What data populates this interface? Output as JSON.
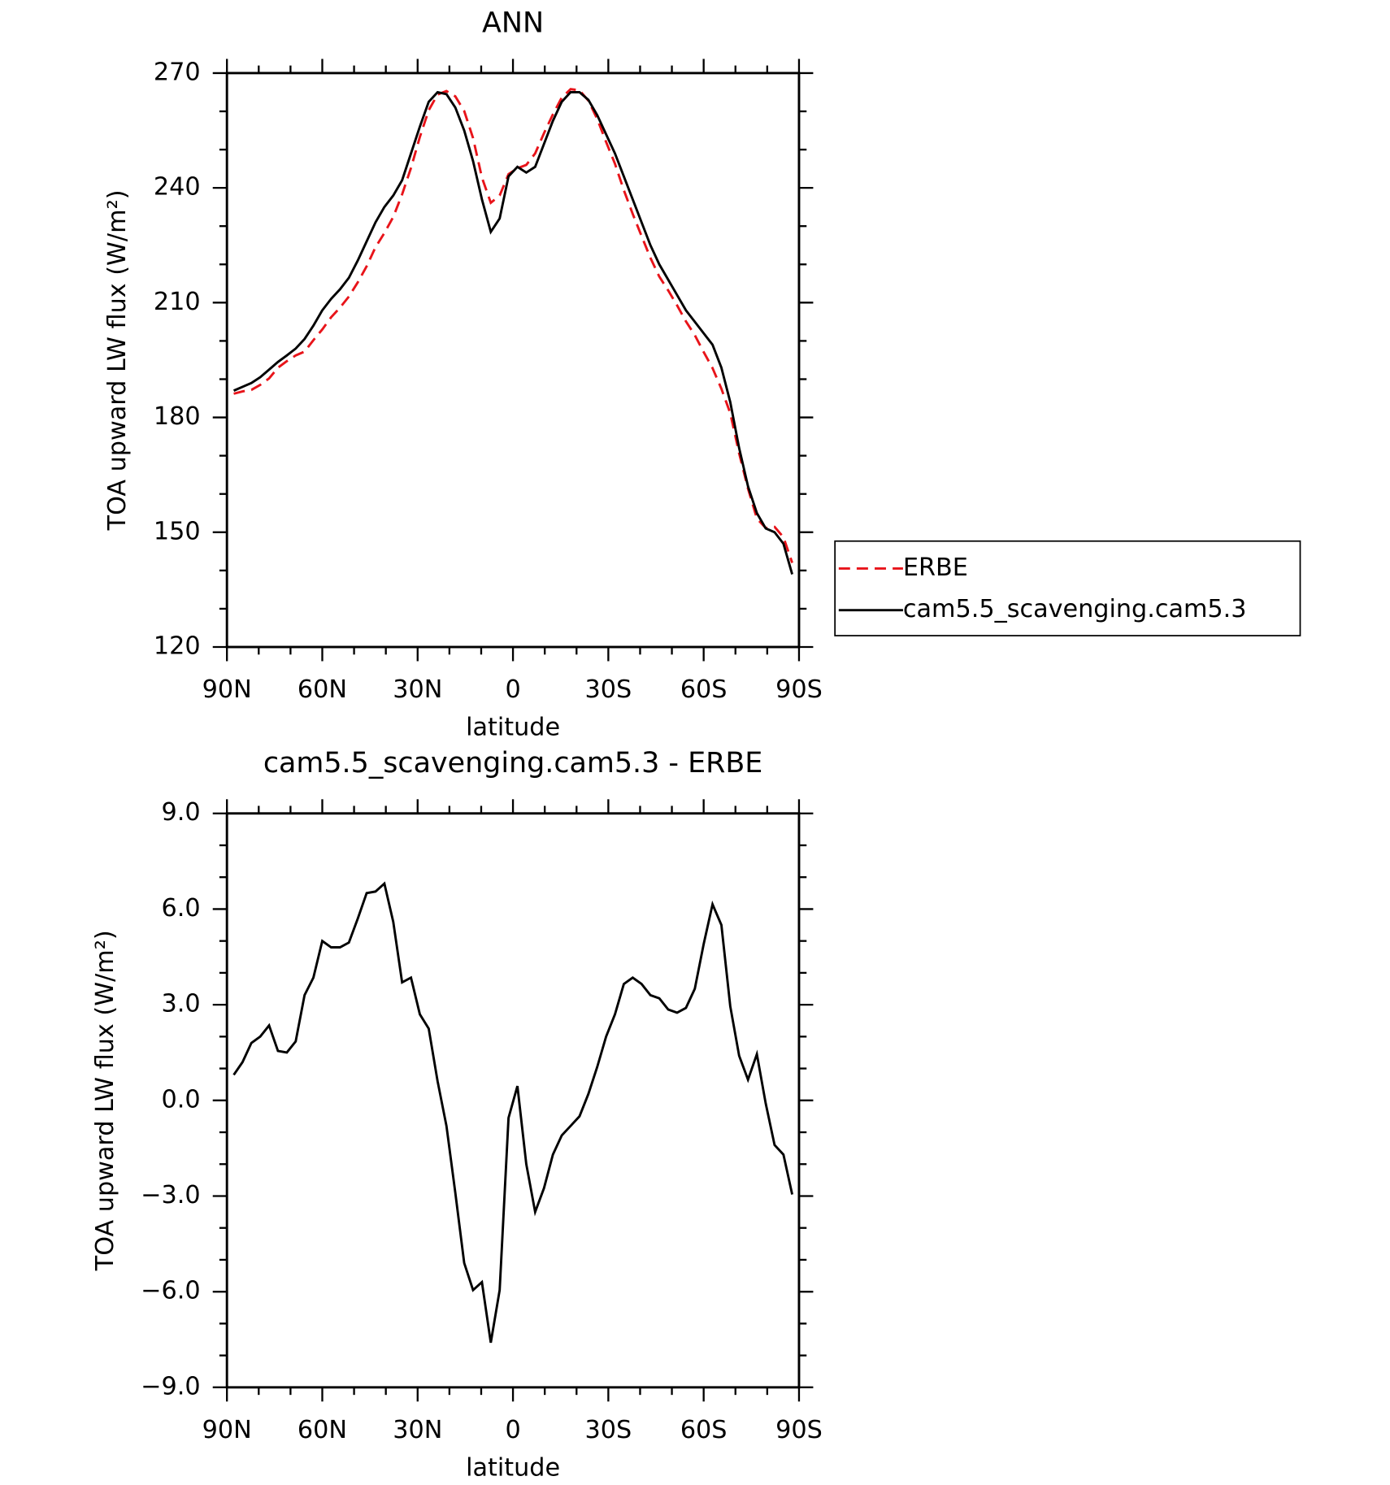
{
  "chart_data": [
    {
      "type": "line",
      "title": "ANN",
      "xlabel": "latitude",
      "ylabel": "TOA upward LW flux (W/m²)",
      "x": [
        87.86,
        85.1,
        82.31,
        79.53,
        76.74,
        73.95,
        71.16,
        68.37,
        65.58,
        62.79,
        60.0,
        57.21,
        54.42,
        51.63,
        48.84,
        46.04,
        43.25,
        40.46,
        37.67,
        34.88,
        32.09,
        29.3,
        26.51,
        23.72,
        20.93,
        18.14,
        15.35,
        12.56,
        9.77,
        6.98,
        4.19,
        1.4,
        -1.4,
        -4.19,
        -6.98,
        -9.77,
        -12.56,
        -15.35,
        -18.14,
        -20.93,
        -23.72,
        -26.51,
        -29.3,
        -32.09,
        -34.88,
        -37.67,
        -40.46,
        -43.25,
        -46.04,
        -48.84,
        -51.63,
        -54.42,
        -57.21,
        -60.0,
        -62.79,
        -65.58,
        -68.37,
        -71.16,
        -73.95,
        -76.74,
        -79.53,
        -82.31,
        -85.1,
        -87.86
      ],
      "series": [
        {
          "name": "ERBE",
          "color": "#e8141a",
          "line_style": "dashed",
          "values": [
            186.2,
            186.8,
            187.2,
            188.5,
            190.2,
            193.0,
            194.7,
            196.2,
            197.2,
            200.2,
            203.0,
            206.2,
            208.7,
            211.6,
            215.3,
            219.5,
            224.5,
            228.2,
            232.4,
            238.3,
            245.2,
            253.3,
            260.3,
            264.4,
            265.3,
            263.9,
            260.1,
            253.0,
            242.7,
            236.1,
            238.0,
            243.6,
            245.1,
            246.0,
            249.0,
            254.3,
            259.2,
            263.6,
            265.8,
            265.5,
            262.8,
            258.0,
            252.0,
            246.3,
            239.4,
            233.2,
            227.4,
            221.7,
            216.8,
            213.2,
            209.3,
            205.1,
            201.5,
            197.1,
            192.9,
            187.5,
            181.1,
            170.6,
            161.4,
            153.6,
            151.1,
            151.4,
            148.7,
            142.0
          ]
        },
        {
          "name": "cam5.5_scavenging.cam5.3",
          "color": "#000000",
          "line_style": "solid",
          "values": [
            187.0,
            188.0,
            189.0,
            190.5,
            192.5,
            194.5,
            196.2,
            198.0,
            200.5,
            204.0,
            208.0,
            211.0,
            213.5,
            216.5,
            221.0,
            226.0,
            231.0,
            235.0,
            238.0,
            242.0,
            249.0,
            256.0,
            262.5,
            265.0,
            264.5,
            261.0,
            255.0,
            247.0,
            237.0,
            228.5,
            232.0,
            243.0,
            245.5,
            244.0,
            245.5,
            251.5,
            257.5,
            262.5,
            265.0,
            265.0,
            263.0,
            259.0,
            254.0,
            249.0,
            243.0,
            237.0,
            231.0,
            225.0,
            220.0,
            216.0,
            212.0,
            208.0,
            205.0,
            202.0,
            199.0,
            193.0,
            184.0,
            172.0,
            162.0,
            155.0,
            151.0,
            150.0,
            147.0,
            139.0
          ]
        }
      ],
      "xlim": [
        90,
        -90
      ],
      "xticks": [
        {
          "value": 90,
          "label": "90N"
        },
        {
          "value": 60,
          "label": "60N"
        },
        {
          "value": 30,
          "label": "30N"
        },
        0,
        {
          "value": -30,
          "label": "30S"
        },
        {
          "value": -60,
          "label": "60S"
        },
        {
          "value": -90,
          "label": "90S"
        }
      ],
      "xminorticks": [
        80,
        70,
        50,
        40,
        20,
        10,
        -10,
        -20,
        -40,
        -50,
        -70,
        -80
      ],
      "ylim": [
        120,
        270
      ],
      "yticks": [
        120,
        150,
        180,
        210,
        240,
        270
      ],
      "yminorticks": [
        130,
        140,
        160,
        170,
        190,
        200,
        220,
        230,
        250,
        260
      ],
      "legend": "right"
    },
    {
      "type": "line",
      "title": "cam5.5_scavenging.cam5.3 - ERBE",
      "xlabel": "latitude",
      "ylabel": "TOA upward LW flux (W/m²)",
      "x": [
        87.86,
        85.1,
        82.31,
        79.53,
        76.74,
        73.95,
        71.16,
        68.37,
        65.58,
        62.79,
        60.0,
        57.21,
        54.42,
        51.63,
        48.84,
        46.04,
        43.25,
        40.46,
        37.67,
        34.88,
        32.09,
        29.3,
        26.51,
        23.72,
        20.93,
        18.14,
        15.35,
        12.56,
        9.77,
        6.98,
        4.19,
        1.4,
        -1.4,
        -4.19,
        -6.98,
        -9.77,
        -12.56,
        -15.35,
        -18.14,
        -20.93,
        -23.72,
        -26.51,
        -29.3,
        -32.09,
        -34.88,
        -37.67,
        -40.46,
        -43.25,
        -46.04,
        -48.84,
        -51.63,
        -54.42,
        -57.21,
        -60.0,
        -62.79,
        -65.58,
        -68.37,
        -71.16,
        -73.95,
        -76.74,
        -79.53,
        -82.31,
        -85.1,
        -87.86
      ],
      "values": [
        0.8,
        1.2,
        1.8,
        2.0,
        2.35,
        1.55,
        1.5,
        1.85,
        3.3,
        3.85,
        5.0,
        4.8,
        4.8,
        4.95,
        5.7,
        6.5,
        6.55,
        6.8,
        5.6,
        3.7,
        3.85,
        2.7,
        2.25,
        0.6,
        -0.8,
        -2.9,
        -5.1,
        -5.95,
        -5.7,
        -7.6,
        -5.95,
        -0.55,
        0.45,
        -2.0,
        -3.5,
        -2.75,
        -1.7,
        -1.1,
        -0.8,
        -0.5,
        0.2,
        1.05,
        2.0,
        2.7,
        3.65,
        3.85,
        3.65,
        3.3,
        3.2,
        2.85,
        2.75,
        2.9,
        3.5,
        4.9,
        6.15,
        5.5,
        2.95,
        1.4,
        0.65,
        1.45,
        -0.1,
        -1.4,
        -1.7,
        -2.95
      ],
      "color": "#000000",
      "xlim": [
        90,
        -90
      ],
      "xticks": [
        {
          "value": 90,
          "label": "90N"
        },
        {
          "value": 60,
          "label": "60N"
        },
        {
          "value": 30,
          "label": "30N"
        },
        0,
        {
          "value": -30,
          "label": "30S"
        },
        {
          "value": -60,
          "label": "60S"
        },
        {
          "value": -90,
          "label": "90S"
        }
      ],
      "xminorticks": [
        80,
        70,
        50,
        40,
        20,
        10,
        -10,
        -20,
        -40,
        -50,
        -70,
        -80
      ],
      "ylim": [
        -9,
        9
      ],
      "yticks": [
        {
          "value": -9,
          "label": "−9.0"
        },
        {
          "value": -6,
          "label": "−6.0"
        },
        {
          "value": -3,
          "label": "−3.0"
        },
        {
          "value": 0,
          "label": "0.0"
        },
        {
          "value": 3,
          "label": "3.0"
        },
        {
          "value": 6,
          "label": "6.0"
        },
        {
          "value": 9,
          "label": "9.0"
        }
      ],
      "yminorticks": [
        -8,
        -7,
        -5,
        -4,
        -2,
        -1,
        1,
        2,
        4,
        5,
        7,
        8
      ]
    }
  ]
}
